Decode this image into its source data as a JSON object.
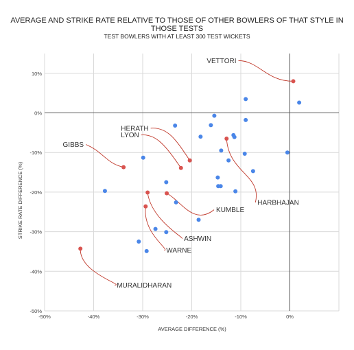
{
  "chart_data": {
    "type": "scatter",
    "title_lines": [
      "AVERAGE AND STRIKE RATE RELATIVE TO THOSE OF OTHER BOWLERS OF THAT STYLE IN",
      "THOSE TESTS"
    ],
    "subtitle": "TEST BOWLERS WITH AT LEAST 300 TEST WICKETS",
    "xlabel": "AVERAGE DIFFERENCE (%)",
    "ylabel": "STRIKE RATE DIFFERENCE (%)",
    "xlim": [
      -50,
      10
    ],
    "ylim": [
      -50,
      15
    ],
    "x_ticks": [
      -50,
      -40,
      -30,
      -20,
      -10,
      0
    ],
    "x_tick_labels": [
      "-50%",
      "-40%",
      "-30%",
      "-20%",
      "-10%",
      "0%"
    ],
    "y_ticks": [
      -50,
      -40,
      -30,
      -20,
      -10,
      0,
      10
    ],
    "y_tick_labels": [
      "-50%",
      "-40%",
      "-30%",
      "-20%",
      "-10%",
      "0%",
      "10%"
    ],
    "grid": true,
    "colors": {
      "highlight": "#d9534f",
      "other": "#4a86e8",
      "zero_line": "#555555",
      "grid": "#d9d9d9",
      "connector": "#c0392b"
    },
    "highlighted": [
      {
        "name": "VETTORI",
        "x": 0.7,
        "y": 8.0,
        "label_dir": "left"
      },
      {
        "name": "HERATH",
        "x": -20.4,
        "y": -12.0,
        "label_dir": "left"
      },
      {
        "name": "LYON",
        "x": -22.2,
        "y": -13.9,
        "label_dir": "left"
      },
      {
        "name": "GIBBS",
        "x": -33.9,
        "y": -13.7,
        "label_dir": "left"
      },
      {
        "name": "HARBHAJAN",
        "x": -12.9,
        "y": -6.5,
        "label_dir": "right"
      },
      {
        "name": "KUMBLE",
        "x": -25.1,
        "y": -20.3,
        "label_dir": "right"
      },
      {
        "name": "ASHWIN",
        "x": -29.0,
        "y": -20.1,
        "label_dir": "right"
      },
      {
        "name": "WARNE",
        "x": -29.4,
        "y": -23.6,
        "label_dir": "right"
      },
      {
        "name": "MURALIDHARAN",
        "x": -42.7,
        "y": -34.3,
        "label_dir": "right"
      }
    ],
    "others": [
      {
        "x": 1.9,
        "y": 2.6
      },
      {
        "x": -9.0,
        "y": 3.5
      },
      {
        "x": -9.0,
        "y": -1.8
      },
      {
        "x": -15.4,
        "y": -0.7
      },
      {
        "x": -16.1,
        "y": -3.1
      },
      {
        "x": -23.4,
        "y": -3.2
      },
      {
        "x": -18.2,
        "y": -6.0
      },
      {
        "x": -11.5,
        "y": -5.6
      },
      {
        "x": -11.3,
        "y": -6.1
      },
      {
        "x": -12.5,
        "y": -12.0
      },
      {
        "x": -14.0,
        "y": -9.5
      },
      {
        "x": -9.2,
        "y": -10.3
      },
      {
        "x": -0.5,
        "y": -10.0
      },
      {
        "x": -29.9,
        "y": -11.3
      },
      {
        "x": -7.5,
        "y": -14.7
      },
      {
        "x": -14.7,
        "y": -16.3
      },
      {
        "x": -14.6,
        "y": -18.5
      },
      {
        "x": -14.1,
        "y": -18.5
      },
      {
        "x": -11.1,
        "y": -19.8
      },
      {
        "x": -37.7,
        "y": -19.7
      },
      {
        "x": -25.2,
        "y": -17.5
      },
      {
        "x": -23.2,
        "y": -22.6
      },
      {
        "x": -18.6,
        "y": -27.0
      },
      {
        "x": -27.4,
        "y": -29.3
      },
      {
        "x": -25.2,
        "y": -30.1
      },
      {
        "x": -30.8,
        "y": -32.5
      },
      {
        "x": -29.2,
        "y": -34.9
      }
    ]
  }
}
